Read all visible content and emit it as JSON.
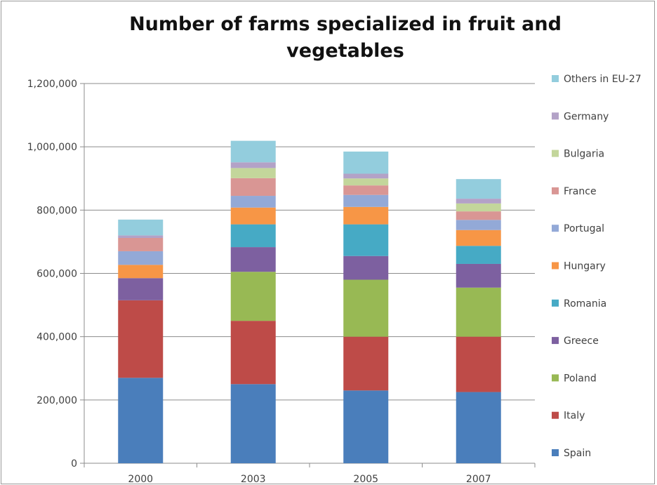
{
  "chart_data": {
    "type": "bar",
    "stacked": true,
    "title": "Number of farms specialized in fruit and vegetables",
    "xlabel": "",
    "ylabel": "",
    "categories": [
      "2000",
      "2003",
      "2005",
      "2007"
    ],
    "ylim": [
      0,
      1200000
    ],
    "yticks": [
      0,
      200000,
      400000,
      600000,
      800000,
      1000000,
      1200000
    ],
    "ytick_labels": [
      "0",
      "200,000",
      "400,000",
      "600,000",
      "800,000",
      "1,000,000",
      "1,200,000"
    ],
    "grid": true,
    "legend_position": "right",
    "series": [
      {
        "name": "Spain",
        "color": "#4a7ebb",
        "values": [
          270000,
          250000,
          230000,
          225000
        ]
      },
      {
        "name": "Italy",
        "color": "#be4b48",
        "values": [
          245000,
          200000,
          170000,
          175000
        ]
      },
      {
        "name": "Poland",
        "color": "#98b954",
        "values": [
          0,
          155000,
          180000,
          155000
        ]
      },
      {
        "name": "Greece",
        "color": "#7d60a0",
        "values": [
          70000,
          78000,
          75000,
          75000
        ]
      },
      {
        "name": "Romania",
        "color": "#46aac5",
        "values": [
          0,
          72000,
          100000,
          57000
        ]
      },
      {
        "name": "Hungary",
        "color": "#f79646",
        "values": [
          42000,
          53000,
          55000,
          50000
        ]
      },
      {
        "name": "Portugal",
        "color": "#93a9d7",
        "values": [
          43000,
          37000,
          38000,
          32000
        ]
      },
      {
        "name": "France",
        "color": "#d99694",
        "values": [
          42000,
          56000,
          30000,
          27000
        ]
      },
      {
        "name": "Bulgaria",
        "color": "#c3d69b",
        "values": [
          0,
          32000,
          22000,
          25000
        ]
      },
      {
        "name": "Germany",
        "color": "#b3a2c7",
        "values": [
          8000,
          18000,
          15000,
          15000
        ]
      },
      {
        "name": "Others in EU-27",
        "color": "#93cddd",
        "values": [
          50000,
          68000,
          70000,
          62000
        ]
      }
    ]
  }
}
